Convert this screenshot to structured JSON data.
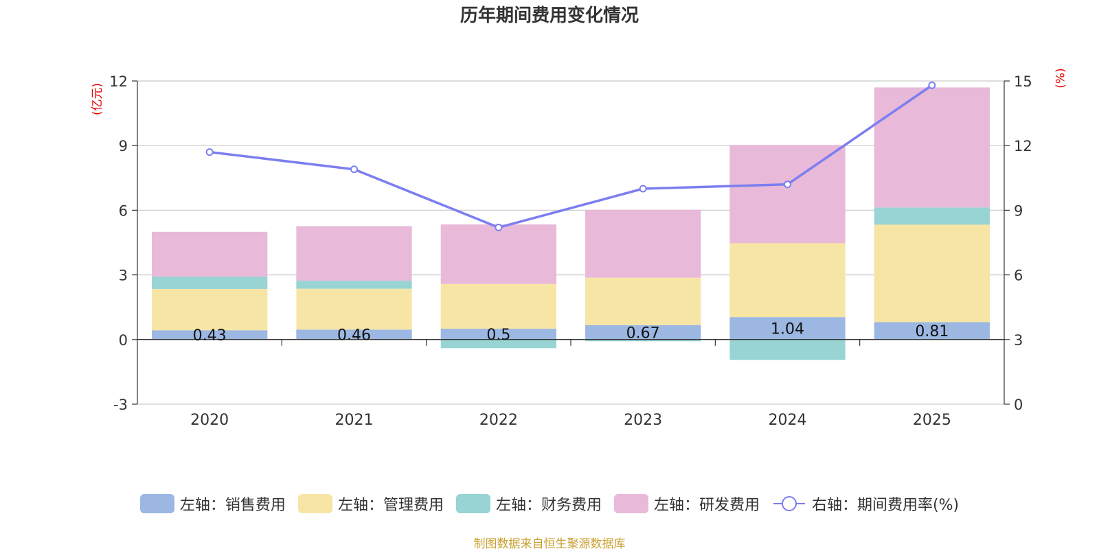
{
  "chart_data": {
    "type": "bar",
    "title": "历年期间费用变化情况",
    "left_axis_unit": "(亿元)",
    "right_axis_unit": "(%)",
    "categories": [
      "2020",
      "2021",
      "2022",
      "2023",
      "2024",
      "2025"
    ],
    "left_ylim": [
      -3,
      12
    ],
    "left_ticks": [
      "-3",
      "0",
      "3",
      "6",
      "9",
      "12"
    ],
    "right_ylim": [
      0,
      15
    ],
    "right_ticks": [
      "0",
      "3",
      "6",
      "9",
      "12",
      "15"
    ],
    "series": [
      {
        "name": "左轴：销售费用",
        "axis": "left",
        "type": "bar",
        "color": "#9bb7e2",
        "values": [
          0.43,
          0.46,
          0.5,
          0.67,
          1.04,
          0.81
        ],
        "labels": [
          "0.43",
          "0.46",
          "0.5",
          "0.67",
          "1.04",
          "0.81"
        ]
      },
      {
        "name": "左轴：管理费用",
        "axis": "left",
        "type": "bar",
        "color": "#f7e5a6",
        "values": [
          1.92,
          1.9,
          2.08,
          2.2,
          3.43,
          4.52
        ]
      },
      {
        "name": "左轴：财务费用",
        "axis": "left",
        "type": "bar",
        "color": "#98d4d4",
        "values": [
          0.57,
          0.37,
          -0.4,
          -0.08,
          -0.95,
          0.8
        ]
      },
      {
        "name": "左轴：研发费用",
        "axis": "left",
        "type": "bar",
        "color": "#e8b9d8",
        "values": [
          2.08,
          2.53,
          2.76,
          3.15,
          4.56,
          5.57
        ]
      },
      {
        "name": "右轴：期间费用率(%)",
        "axis": "right",
        "type": "line",
        "color": "#7b7ef0",
        "values": [
          11.7,
          10.9,
          8.2,
          10.0,
          10.2,
          14.8
        ]
      }
    ],
    "source": "制图数据来自恒生聚源数据库"
  }
}
